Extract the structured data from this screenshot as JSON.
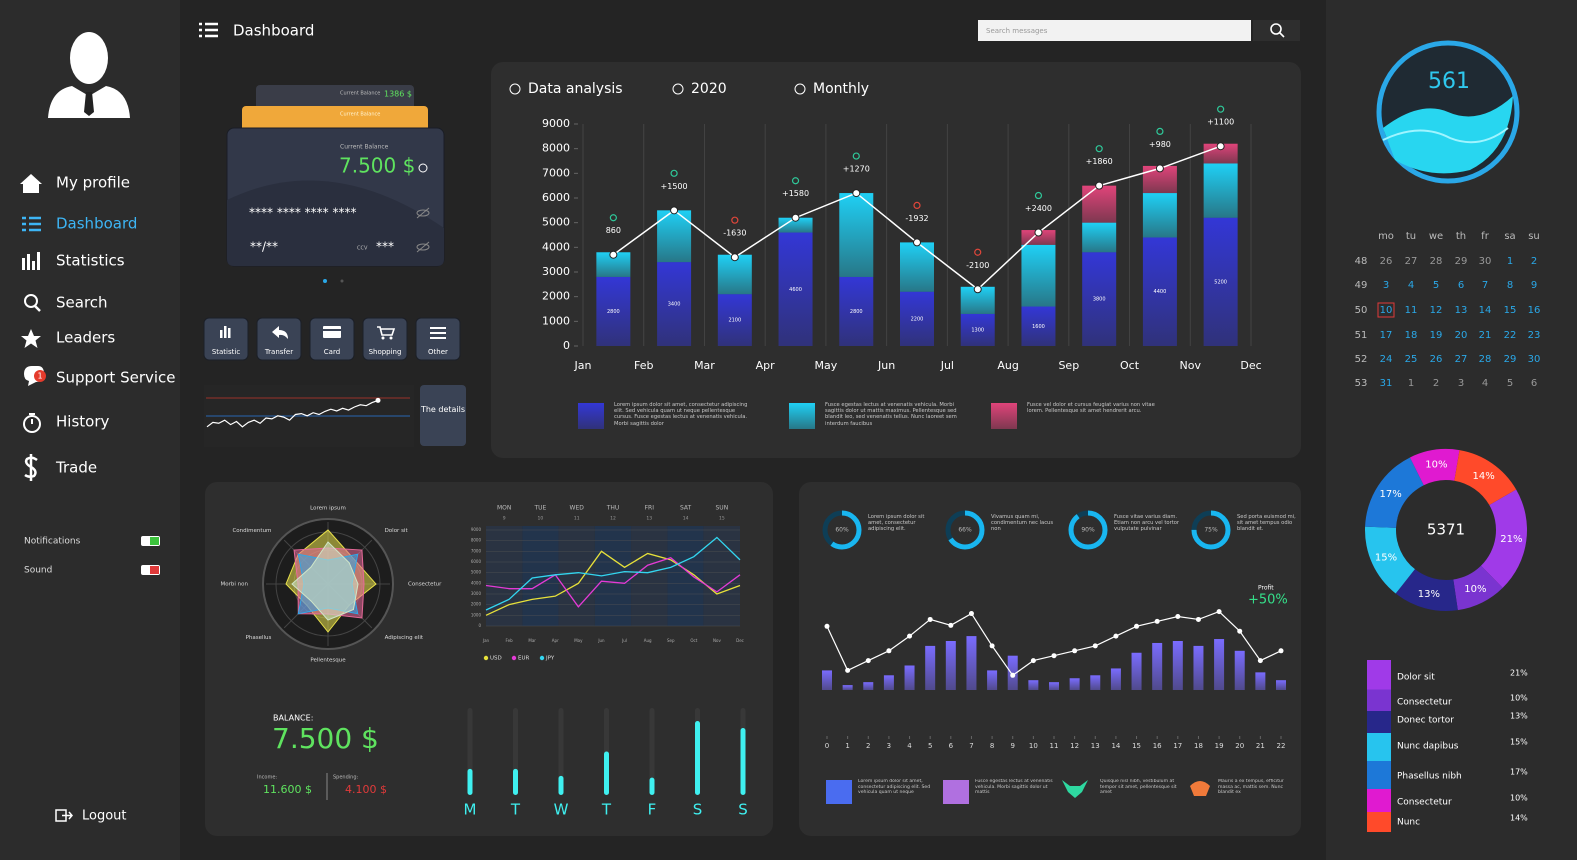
{
  "sidebar": {
    "nav": [
      "My profile",
      "Dashboard",
      "Statistics",
      "Search",
      "Leaders",
      "Support Service",
      "History",
      "Trade"
    ],
    "badge": "1",
    "settings": [
      "Notifications",
      "Sound"
    ],
    "logout": "Logout"
  },
  "header": {
    "title": "Dashboard",
    "search_placeholder": "Search messages"
  },
  "card": {
    "back_label": "Current Balance",
    "back_amount": "1386 $",
    "middle_label": "Current Balance",
    "front_label": "Current Balance",
    "front_amount": "7.500 $",
    "number": "**** **** **** ****",
    "expiry": "**/**",
    "ccv_label": "CCV",
    "ccv": "***"
  },
  "actions": [
    "Statistic",
    "Transfer",
    "Card",
    "Shopping",
    "Other"
  ],
  "details": "The details",
  "balance": {
    "label": "BALANCE:",
    "amount": "7.500 $",
    "income_label": "Income:",
    "income": "11.600 $",
    "spending_label": "Spending:",
    "spending": "4.100 $"
  },
  "gauge": {
    "value": 561
  },
  "calendar": {
    "weekdays": [
      "mo",
      "tu",
      "we",
      "th",
      "fr",
      "sa",
      "su"
    ],
    "weeks": [
      {
        "week": 48,
        "days": [
          26,
          27,
          28,
          29,
          30,
          1,
          2
        ]
      },
      {
        "week": 49,
        "days": [
          3,
          4,
          5,
          6,
          7,
          8,
          9
        ]
      },
      {
        "week": 50,
        "days": [
          10,
          11,
          12,
          13,
          14,
          15,
          16
        ]
      },
      {
        "week": 51,
        "days": [
          17,
          18,
          19,
          20,
          21,
          22,
          23
        ]
      },
      {
        "week": 52,
        "days": [
          24,
          25,
          26,
          27,
          28,
          29,
          30
        ]
      },
      {
        "week": 53,
        "days": [
          31,
          1,
          2,
          3,
          4,
          5,
          6
        ]
      }
    ],
    "today": 10
  },
  "chart_data": [
    {
      "type": "bar",
      "filters": [
        "Data analysis",
        "2020",
        "Monthly"
      ],
      "categories": [
        "Jan",
        "Feb",
        "Mar",
        "Apr",
        "May",
        "Jun",
        "Jul",
        "Aug",
        "Sep",
        "Oct",
        "Nov",
        "Dec"
      ],
      "ylim": [
        0,
        9000
      ],
      "yticks": [
        0,
        1000,
        2000,
        3000,
        4000,
        5000,
        6000,
        7000,
        8000,
        9000
      ],
      "grid": "x",
      "stacked": true,
      "series": [
        {
          "name": "Lorem ipsum dolor sit amet, consectetur adipiscing elit. Sed vehicula quam ut neque pellentesque cursus. Fusce egestas lectus at venenatis vehicula. Morbi sagittis dolor",
          "type": "bar",
          "color": "#3337d6",
          "values": [
            2800,
            3400,
            2100,
            4600,
            2800,
            2200,
            1300,
            1600,
            3800,
            4400,
            5200,
            null
          ],
          "value_labels": [
            "2800",
            "3400",
            "2100",
            "4600",
            "2800",
            "2200",
            "1300",
            "1600",
            "3800",
            "4400",
            "5200",
            null
          ]
        },
        {
          "name": "Fusce egestas lectus at venenatis vehicula. Morbi sagittis dolor ut mattis maximus. Pellentesque sed blandit leo, sed venenatis tellus. Nunc laoreet sem interdum faucibus",
          "type": "bar",
          "color": "#1fd0f5",
          "values": [
            1000,
            2100,
            1600,
            600,
            3400,
            2000,
            1100,
            2500,
            1200,
            1800,
            2200,
            null
          ]
        },
        {
          "name": "Fusce vel dolor et cursus feugiat varius non vitae lorem. Pellentesque sit amet hendrerit arcu.",
          "type": "bar",
          "color": "#e0447a",
          "values": [
            null,
            null,
            null,
            null,
            null,
            null,
            null,
            600,
            1500,
            1100,
            800,
            null
          ]
        },
        {
          "type": "line",
          "color": "#ffffff",
          "values": [
            3700,
            5500,
            3600,
            5200,
            6200,
            4200,
            2300,
            4600,
            6500,
            7200,
            8100,
            null
          ]
        }
      ],
      "annotations": [
        "860",
        "+1500",
        "-1630",
        "+1580",
        "+1270",
        "-1932",
        "-2100",
        "+2400",
        "+1860",
        "+980",
        "+1100",
        null
      ]
    },
    {
      "type": "radar",
      "categories": [
        "Lorem ipsum",
        "Dolor sit",
        "Consectetur",
        "Adipiscing elit",
        "Pellentesque",
        "Phasellus",
        "Morbi non",
        "Condimentum"
      ],
      "rlim": [
        0,
        10
      ],
      "series": [
        {
          "color": "#e8e04a",
          "values": [
            9,
            6,
            8,
            5,
            8,
            5,
            7,
            7
          ]
        },
        {
          "color": "#e86a9a",
          "values": [
            6,
            8,
            6,
            8,
            5,
            7,
            5,
            8
          ]
        },
        {
          "color": "#2fa8e8",
          "values": [
            4,
            7,
            4,
            7,
            4,
            7,
            4,
            7
          ]
        },
        {
          "color": "#cfe6c8",
          "values": [
            7,
            5,
            5,
            6,
            6,
            4,
            6,
            4
          ]
        }
      ]
    },
    {
      "type": "line",
      "columns": [
        "MON",
        "TUE",
        "WED",
        "THU",
        "FRI",
        "SAT",
        "SUN"
      ],
      "dates": [
        9,
        10,
        11,
        12,
        13,
        14,
        15
      ],
      "categories": [
        "Jan",
        "Feb",
        "Mar",
        "Apr",
        "May",
        "Jun",
        "Jul",
        "Aug",
        "Sep",
        "Oct",
        "Nov",
        "Dec"
      ],
      "ylim": [
        0,
        9000
      ],
      "yticks": [
        0,
        1000,
        2000,
        3000,
        4000,
        5000,
        6000,
        7000,
        8000,
        9000
      ],
      "grid": true,
      "series": [
        {
          "name": "USD",
          "color": "#e6e03a",
          "values": [
            1000,
            2000,
            2500,
            2800,
            4000,
            7000,
            5500,
            6800,
            6200,
            4800,
            3000,
            3800
          ]
        },
        {
          "name": "EUR",
          "color": "#e43ad6",
          "values": [
            3800,
            3500,
            3500,
            4800,
            1800,
            4200,
            4000,
            5700,
            6400,
            4600,
            3200,
            4800
          ]
        },
        {
          "name": "JPY",
          "color": "#33d6f0",
          "values": [
            1500,
            2500,
            4500,
            4800,
            5000,
            4700,
            5100,
            5000,
            5500,
            6500,
            8300,
            6200
          ]
        }
      ]
    },
    {
      "type": "bar",
      "categories": [
        "M",
        "T",
        "W",
        "T",
        "F",
        "S",
        "S"
      ],
      "ylim": [
        0,
        100
      ],
      "color": "#3ff0f0",
      "values": [
        30,
        30,
        22,
        50,
        20,
        85,
        77
      ]
    },
    {
      "type": "combo",
      "x": [
        0,
        1,
        2,
        3,
        4,
        5,
        6,
        7,
        8,
        9,
        10,
        11,
        12,
        13,
        14,
        15,
        16,
        17,
        18,
        19,
        20,
        21,
        22
      ],
      "xlim": [
        0,
        22
      ],
      "xticks": [
        0,
        1,
        2,
        3,
        4,
        5,
        6,
        7,
        8,
        9,
        10,
        11,
        12,
        13,
        14,
        15,
        16,
        17,
        18,
        19,
        20,
        21,
        22
      ],
      "ylim": [
        0,
        100
      ],
      "profit_label": "Profit",
      "profit": "+50%",
      "series": [
        {
          "type": "bar",
          "color": "#7a6cff",
          "values": [
            20,
            5,
            8,
            15,
            25,
            45,
            50,
            55,
            20,
            35,
            10,
            8,
            12,
            15,
            22,
            38,
            48,
            50,
            45,
            52,
            40,
            18,
            10
          ]
        },
        {
          "type": "line",
          "color": "#ffffff",
          "values": [
            65,
            20,
            30,
            40,
            55,
            72,
            66,
            78,
            45,
            15,
            30,
            35,
            40,
            45,
            55,
            65,
            70,
            75,
            72,
            80,
            60,
            30,
            40
          ]
        }
      ],
      "legend": [
        "Lorem ipsum dolor sit amet, consectetur adipiscing elit. Sed vehicula quam ut neque",
        "Fusce egestas lectus at venenatis vehicula. Morbi sagittis dolor ut mattis",
        "Quisque nisl nibh, vestibulum at tempor sit amet, pellentesque sit amet",
        "Mauris a ex tempus, efficitur massa ac, mattis sem. Nunc blandit ex"
      ]
    },
    {
      "type": "ring",
      "values": [
        60,
        66,
        90,
        75
      ],
      "value_labels": [
        "60%",
        "66%",
        "90%",
        "75%"
      ],
      "color": "#19b6f0",
      "captions": [
        "Lorem ipsum dolor sit amet, consectetur adipiscing elit.",
        "Vivamus quam mi, condimentum nec lacus non",
        "Fusce vitae varius diam. Etiam non arcu vel tortor vulputate pulvinar",
        "Sed porta euismod mi, sit amet tempus odio blandit et."
      ]
    },
    {
      "type": "pie",
      "donut": true,
      "total": 5371,
      "categories": [
        "Dolor sit",
        "Consectetur",
        "Donec tortor",
        "Nunc dapibus",
        "Phasellus nibh",
        "Consectetur",
        "Nunc"
      ],
      "values": [
        21,
        10,
        13,
        15,
        17,
        10,
        14
      ],
      "value_labels": [
        "21%",
        "10%",
        "13%",
        "15%",
        "17%",
        "10%",
        "14%"
      ],
      "colors": [
        "#a03ae8",
        "#7a34d0",
        "#27278a",
        "#27c4ee",
        "#1d78d8",
        "#e01ad0",
        "#ff4a2a"
      ]
    },
    {
      "type": "line",
      "color": "#ffffff",
      "ylim": [
        0,
        100
      ],
      "values": [
        30,
        40,
        38,
        45,
        35,
        42,
        30,
        40,
        45,
        38,
        50,
        48,
        55,
        52,
        45,
        58,
        60,
        55,
        62,
        58,
        65,
        70,
        66,
        72,
        68,
        75,
        80,
        78,
        85,
        90
      ]
    }
  ]
}
